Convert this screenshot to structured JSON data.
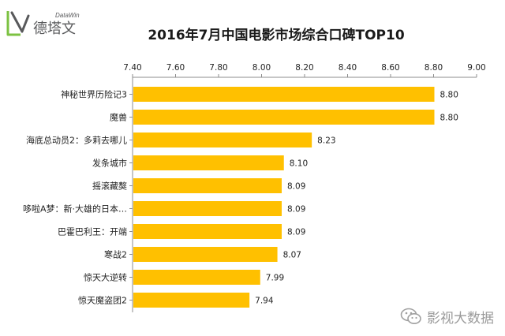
{
  "brand": {
    "name": "德塔文",
    "subname": "DataWin",
    "colors": {
      "green": "#7cc242",
      "ink": "#58595b"
    }
  },
  "watermark": {
    "text": "影视大数据",
    "icon": "wechat-icon"
  },
  "chart_data": {
    "type": "bar",
    "orientation": "horizontal",
    "title": "2016年7月中国电影市场综合口碑TOP10",
    "categories": [
      "神秘世界历险记3",
      "魔兽",
      "海底总动员2：多莉去哪儿",
      "发条城市",
      "摇滚藏獒",
      "哆啦A梦：新·大雄的日本…",
      "巴霍巴利王：开端",
      "寒战2",
      "惊天大逆转",
      "惊天魔盗团2"
    ],
    "values": [
      8.8,
      8.8,
      8.23,
      8.1,
      8.09,
      8.09,
      8.09,
      8.07,
      7.99,
      7.94
    ],
    "value_labels": [
      "8.80",
      "8.80",
      "8.23",
      "8.10",
      "8.09",
      "8.09",
      "8.09",
      "8.07",
      "7.99",
      "7.94"
    ],
    "xlim": [
      7.4,
      9.0
    ],
    "ticks": [
      "7.40",
      "7.60",
      "7.80",
      "8.00",
      "8.20",
      "8.40",
      "8.60",
      "8.80",
      "9.00"
    ],
    "tick_values": [
      7.4,
      7.6,
      7.8,
      8.0,
      8.2,
      8.4,
      8.6,
      8.8,
      9.0
    ],
    "axis_position": "top",
    "grid": false,
    "legend": false,
    "bar_color": "#ffc000"
  }
}
